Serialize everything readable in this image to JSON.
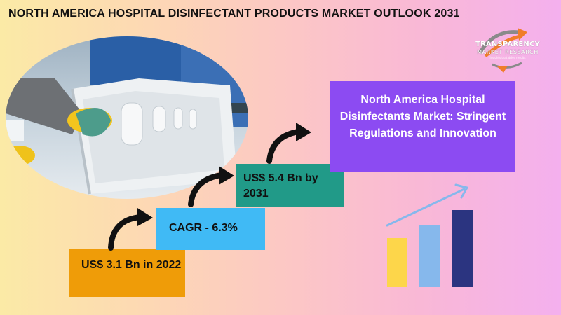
{
  "title": "NORTH AMERICA HOSPITAL DISINFECTANT PRODUCTS MARKET OUTLOOK 2031",
  "logo": {
    "line1": "TRANSPARENCY",
    "line2": "MARKET RESEARCH",
    "line3": "insights that drive results",
    "icon": "arrow-swoosh-icon"
  },
  "steps": {
    "value_2022": "US$ 3.1 Bn in 2022",
    "cagr": "CAGR - 6.3%",
    "value_2031": "US$ 5.4 Bn by 2031"
  },
  "headline": "North America Hospital Disinfectants Market: Stringent Regulations and Innovation",
  "colors": {
    "orange_box": "#ef9c08",
    "blue_box": "#40baf5",
    "teal_box": "#219a88",
    "purple_box": "#8c4bf2",
    "bar_yellow": "#fdd64a",
    "bar_blue": "#86b8ec",
    "bar_navy": "#2b3480"
  },
  "icons": [
    "curved-arrow-icon",
    "growth-chart-icon",
    "hospital-bed-photo"
  ]
}
